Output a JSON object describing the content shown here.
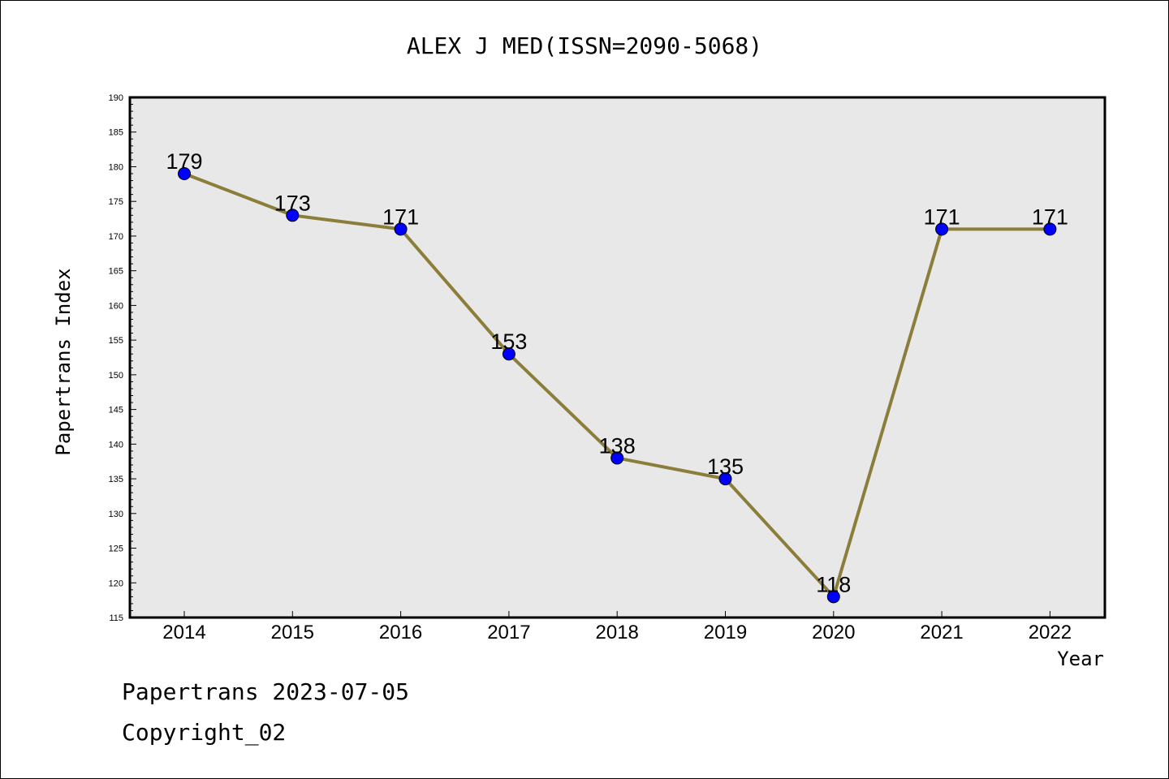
{
  "chart_data": {
    "type": "line",
    "title": "ALEX J MED(ISSN=2090-5068)",
    "xlabel": "Year",
    "ylabel": "Papertrans Index",
    "categories": [
      "2014",
      "2015",
      "2016",
      "2017",
      "2018",
      "2019",
      "2020",
      "2021",
      "2022"
    ],
    "values": [
      179,
      173,
      171,
      153,
      138,
      135,
      118,
      171,
      171
    ],
    "ylim": [
      115,
      190
    ],
    "yticks_major": [
      115,
      120,
      125,
      130,
      135,
      140,
      145,
      150,
      155,
      160,
      165,
      170,
      175,
      180,
      185,
      190
    ],
    "grid": false,
    "line_color": "#8b7d3a",
    "marker_color": "#0000ff",
    "plot_background": "#e8e8e8"
  },
  "footer": {
    "line1": "Papertrans 2023-07-05",
    "line2": "Copyright_02"
  }
}
